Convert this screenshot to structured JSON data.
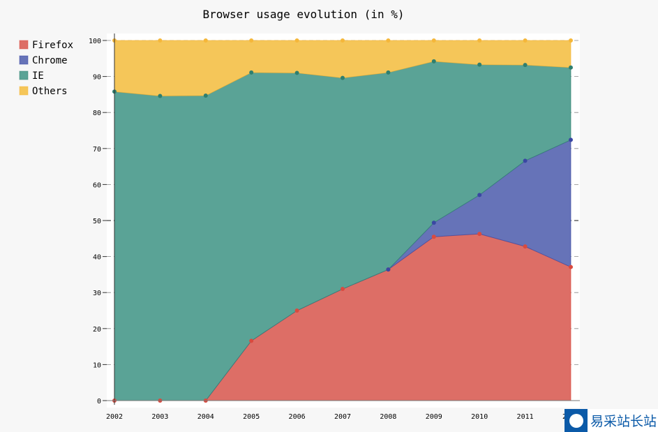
{
  "chart_data": {
    "type": "area",
    "stacked": true,
    "title": "Browser usage evolution (in %)",
    "xlabel": "",
    "ylabel": "",
    "x": [
      "2002",
      "2003",
      "2004",
      "2005",
      "2006",
      "2007",
      "2008",
      "2009",
      "2010",
      "2011",
      "2012"
    ],
    "ylim": [
      0,
      100
    ],
    "yticks": [
      0,
      10,
      20,
      30,
      40,
      50,
      60,
      70,
      80,
      90,
      100
    ],
    "grid": true,
    "legend_position": "left",
    "series": [
      {
        "name": "Firefox",
        "color": "#dd6e66",
        "dot": "#d94a3f",
        "values": [
          null,
          null,
          0,
          16.6,
          25,
          31,
          36.4,
          45.5,
          46.3,
          42.8,
          37.1
        ]
      },
      {
        "name": "Chrome",
        "color": "#6673b8",
        "dot": "#3a47a3",
        "values": [
          null,
          null,
          null,
          null,
          null,
          null,
          0,
          3.9,
          10.8,
          23.8,
          35.3
        ]
      },
      {
        "name": "IE",
        "color": "#5aa396",
        "dot": "#2f7f6f",
        "values": [
          85.8,
          84.6,
          84.7,
          74.5,
          66,
          58.6,
          54.7,
          44.8,
          36.2,
          26.6,
          20.1
        ]
      },
      {
        "name": "Others",
        "color": "#f5c659",
        "dot": "#f5b73a",
        "values": [
          14.2,
          15.4,
          15.3,
          8.9,
          9,
          10.4,
          8.9,
          5.8,
          6.7,
          6.8,
          7.5
        ]
      }
    ]
  },
  "watermark": "易采站长站"
}
